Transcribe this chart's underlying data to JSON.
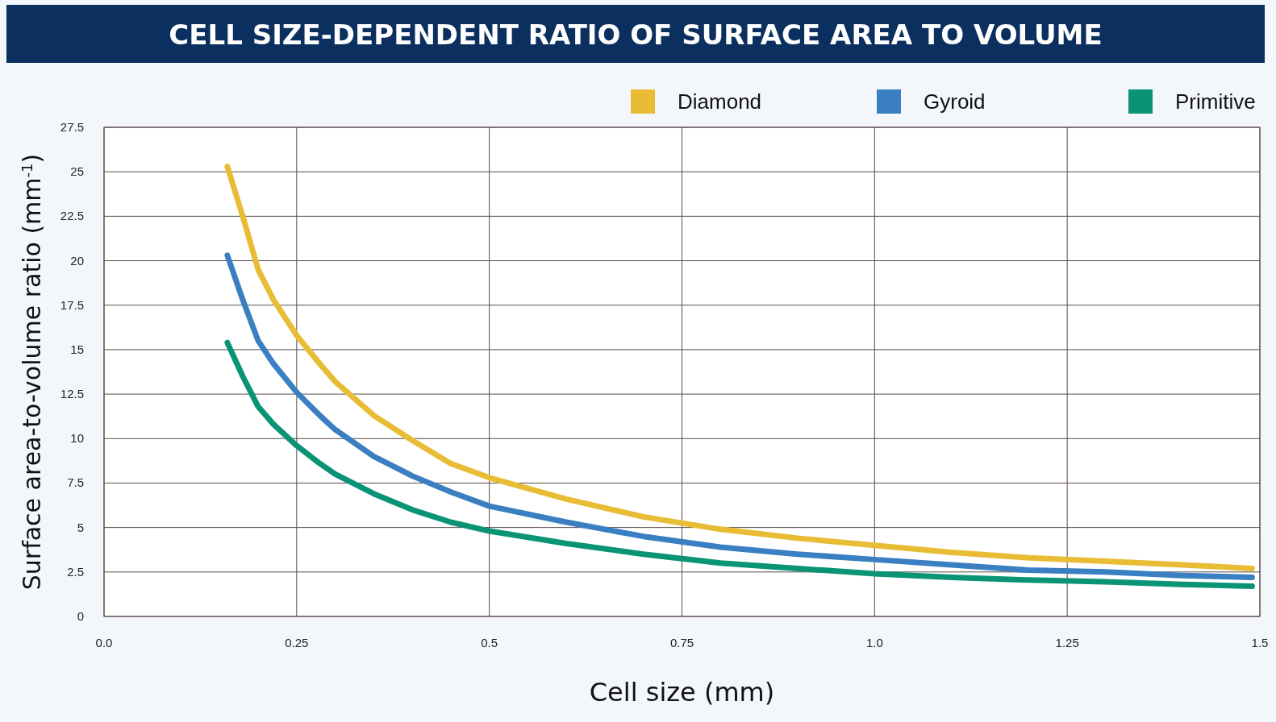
{
  "chart_data": {
    "type": "line",
    "title": "CELL SIZE-DEPENDENT RATIO OF SURFACE AREA TO VOLUME",
    "xlabel": "Cell size (mm)",
    "ylabel": "Surface area-to-volume ratio (mm$^{-1}$)",
    "x": [
      0.16,
      0.18,
      0.2,
      0.22,
      0.25,
      0.28,
      0.3,
      0.35,
      0.4,
      0.45,
      0.5,
      0.6,
      0.7,
      0.8,
      0.9,
      1.0,
      1.1,
      1.2,
      1.3,
      1.4,
      1.49
    ],
    "series": [
      {
        "name": "Diamond",
        "color": "#e8bd35",
        "values": [
          25.3,
          22.5,
          19.5,
          17.8,
          15.8,
          14.2,
          13.2,
          11.3,
          9.9,
          8.6,
          7.8,
          6.6,
          5.6,
          4.9,
          4.4,
          4.0,
          3.6,
          3.3,
          3.1,
          2.9,
          2.7
        ]
      },
      {
        "name": "Gyroid",
        "color": "#3a7fc1",
        "values": [
          20.3,
          17.8,
          15.5,
          14.2,
          12.6,
          11.3,
          10.5,
          9.0,
          7.9,
          7.0,
          6.2,
          5.3,
          4.5,
          3.9,
          3.5,
          3.2,
          2.9,
          2.6,
          2.5,
          2.3,
          2.2
        ]
      },
      {
        "name": "Primitive",
        "color": "#0a9475",
        "values": [
          15.4,
          13.5,
          11.8,
          10.8,
          9.6,
          8.6,
          8.0,
          6.9,
          6.0,
          5.3,
          4.8,
          4.1,
          3.5,
          3.0,
          2.7,
          2.4,
          2.2,
          2.05,
          1.95,
          1.8,
          1.7
        ]
      }
    ],
    "xlim": [
      0,
      1.5
    ],
    "xticks": [
      {
        "value": 0,
        "label": "0.0"
      },
      0.25,
      0.5,
      0.75,
      {
        "value": 1,
        "label": "1.0"
      },
      1.25,
      1.5
    ],
    "ylim": [
      0,
      27.5
    ],
    "yticks": [
      0,
      2.5,
      5,
      7.5,
      10,
      12.5,
      15,
      17.5,
      20,
      22.5,
      25,
      27.5
    ],
    "grid": true,
    "legend": "top right"
  }
}
